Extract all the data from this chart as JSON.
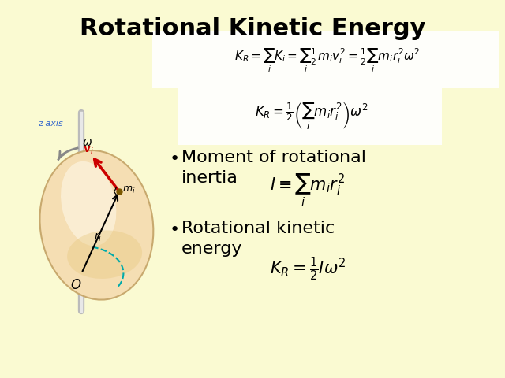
{
  "background_color": "#FAFAD2",
  "title": "Rotational Kinetic Energy",
  "title_fontsize": 22,
  "title_fontweight": "bold",
  "title_color": "#000000",
  "eq1": "$K_R = \\sum_i K_i = \\sum_i \\frac{1}{2} m_i v_i^2 = \\frac{1}{2} \\sum_i m_i r_i^2 \\omega^2$",
  "eq2": "$K_R = \\frac{1}{2}\\left(\\sum_i m_i r_i^2\\right)\\omega^2$",
  "bullet1_text": "Moment of rotational\ninertia",
  "bullet1_eq": "$I \\equiv \\sum_i m_i r_i^2$",
  "bullet2_text": "Rotational kinetic\nenergy",
  "bullet2_eq": "$K_R = \\frac{1}{2} I\\omega^2$",
  "eq_box_color": "#FFFFFF",
  "bullet_fontsize": 16,
  "bullet_eq_fontsize": 15,
  "disk_color": "#F5DEB3",
  "disk_edge_color": "#C8A96E",
  "axis_color": "#BBBBBB",
  "z_label_color": "#3366CC",
  "arc_color": "#00AAAA",
  "arrow_color": "#CC0000",
  "omega_color": "#888888"
}
